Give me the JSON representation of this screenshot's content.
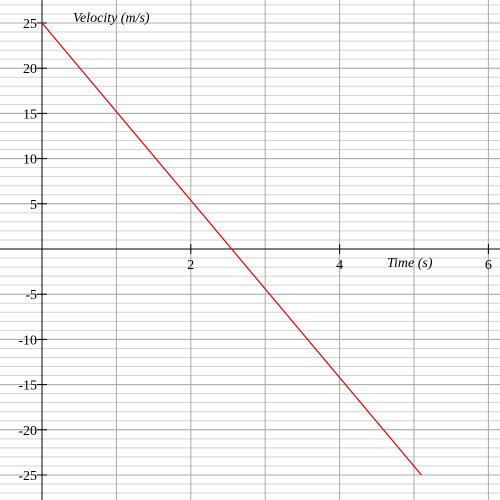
{
  "chart_data": {
    "type": "line",
    "title": "",
    "xlabel": "Time (s)",
    "ylabel": "Velocity (m/s)",
    "xlim": [
      0,
      6
    ],
    "ylim": [
      -25,
      25
    ],
    "x_ticks": [
      2,
      4,
      6
    ],
    "y_ticks": [
      25,
      20,
      15,
      10,
      5,
      -5,
      -10,
      -15,
      -20,
      -25
    ],
    "grid": true,
    "series": [
      {
        "color": "#e00000",
        "x": [
          0,
          5.1
        ],
        "y": [
          25,
          -25
        ]
      }
    ]
  },
  "colors": {
    "background": "#ffffff",
    "grid_major": "#a8a8a8",
    "grid_minor": "#d2d2d2",
    "axis": "#000000",
    "line": "#e00000"
  }
}
